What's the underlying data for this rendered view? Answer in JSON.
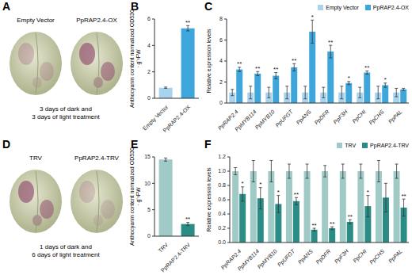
{
  "chart_data": [
    {
      "type": "image",
      "panel_label": "A",
      "labels": [
        "Empty Vector",
        "PpRAP2.4-OX"
      ],
      "caption": [
        "3 days of dark and",
        "3 days of light treatment"
      ]
    },
    {
      "type": "bar",
      "panel_label": "B",
      "categories": [
        "Empty Vector",
        "PpRAP2.4-OX"
      ],
      "values": [
        0.8,
        5.3
      ],
      "errors": [
        0.05,
        0.2
      ],
      "significance": [
        null,
        "**"
      ],
      "colors": [
        "#a8d3ee",
        "#3fa6dc"
      ],
      "ylabel": "Anthocyanin content normalized OD530 · g⁻¹FW",
      "ylim": [
        0,
        6
      ],
      "yticks": [
        0,
        2,
        4,
        6
      ]
    },
    {
      "type": "bar",
      "panel_label": "C",
      "categories": [
        "PpRAP2.4",
        "PpMYB114",
        "PpMYB10",
        "PpUFGT",
        "PpANS",
        "PpDFR",
        "PpF3H",
        "PpCHI",
        "PpCHS",
        "PpPAL"
      ],
      "series": [
        {
          "name": "Empty Vector",
          "color": "#a8d3ee",
          "values": [
            1,
            1,
            1,
            1,
            1,
            1,
            1,
            1,
            1,
            1
          ],
          "errors": [
            0.3,
            0.6,
            0.5,
            0.6,
            0.6,
            0.5,
            0.6,
            0.5,
            0.6,
            0.4
          ]
        },
        {
          "name": "PpRAP2.4-OX",
          "color": "#3fa6dc",
          "values": [
            3.2,
            2.8,
            2.6,
            3.4,
            6.8,
            4.9,
            1.9,
            2.9,
            1.7,
            1.3
          ],
          "errors": [
            0.2,
            0.2,
            0.3,
            0.35,
            1.1,
            0.6,
            0.15,
            0.15,
            0.2,
            0.1
          ],
          "significance": [
            "**",
            "**",
            "**",
            "**",
            "*",
            "**",
            "*",
            "**",
            "*",
            null
          ]
        }
      ],
      "ylabel": "Relative expression levels",
      "ylim": [
        0,
        8
      ],
      "yticks": [
        0,
        2,
        4,
        6,
        8
      ],
      "legend": "upper right"
    },
    {
      "type": "image",
      "panel_label": "D",
      "labels": [
        "TRV",
        "PpRAP2.4-TRV"
      ],
      "caption": [
        "1 days of dark and",
        "6 days of light treatment"
      ]
    },
    {
      "type": "bar",
      "panel_label": "E",
      "categories": [
        "TRV",
        "PpRAP2.4-TRV"
      ],
      "values": [
        14.5,
        2.3
      ],
      "errors": [
        0.3,
        0.3
      ],
      "significance": [
        null,
        "**"
      ],
      "colors": [
        "#9fcac6",
        "#2a8c85"
      ],
      "ylabel": "Anthocyanin content normalized OD530 · g⁻¹FW",
      "ylim": [
        0,
        15
      ],
      "yticks": [
        0,
        5,
        10,
        15
      ]
    },
    {
      "type": "bar",
      "panel_label": "F",
      "categories": [
        "PpRAP2.4",
        "PpMYB114",
        "PpMYB10",
        "PpUFGT",
        "PpANS",
        "PpDFR",
        "PpF3H",
        "PpCHI",
        "PpCHS",
        "PpPAL"
      ],
      "series": [
        {
          "name": "TRV",
          "color": "#9fcac6",
          "values": [
            1,
            1,
            1,
            1,
            1,
            1,
            1,
            1,
            1,
            1
          ],
          "errors": [
            0.05,
            0.15,
            0.15,
            0.1,
            0.1,
            0.08,
            0.1,
            0.1,
            0.15,
            0.1
          ]
        },
        {
          "name": "PpRAP2.4-TRV",
          "color": "#2a8c85",
          "values": [
            0.68,
            0.62,
            0.54,
            0.58,
            0.18,
            0.2,
            0.29,
            0.51,
            0.63,
            0.49
          ],
          "errors": [
            0.1,
            0.15,
            0.12,
            0.05,
            0.02,
            0.02,
            0.03,
            0.15,
            0.2,
            0.12
          ],
          "significance": [
            "*",
            "*",
            "*",
            "**",
            "**",
            "**",
            "**",
            "*",
            null,
            "**"
          ]
        }
      ],
      "ylabel": "Relative expression levels",
      "ylim": [
        0,
        1.2
      ],
      "yticks": [
        {
          "value": 0,
          "label": "0.0"
        },
        0.2,
        0.4,
        0.6,
        0.8,
        {
          "value": 1,
          "label": "1.0"
        },
        1.2
      ],
      "legend": "upper right"
    }
  ]
}
